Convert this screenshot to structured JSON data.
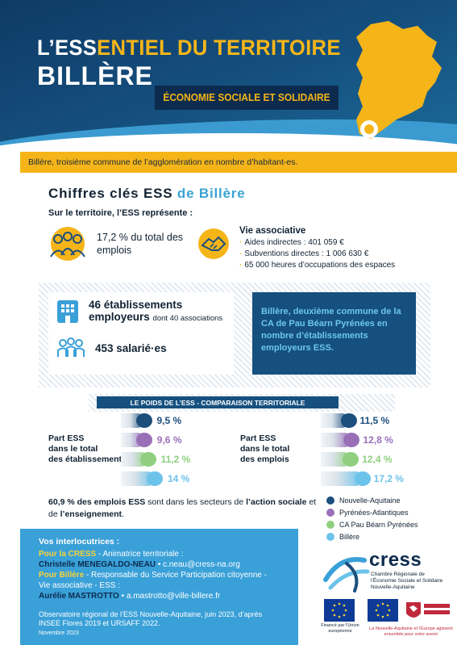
{
  "header": {
    "title_ess": "L’ESS",
    "title_rest": "ENTIEL DU TERRITOIRE",
    "town": "BILLÈRE",
    "subtitle": "ÉCONOMIE SOCIALE ET SOLIDAIRE"
  },
  "banner": "Billère, troisième commune de l’agglomération en nombre d’habitant-es.",
  "key": {
    "title": "Chiffres clés ESS",
    "title_de": "de Billère",
    "intro": "Sur le territoire, l’ESS représente :",
    "emplois_text": "17,2 % du total des emplois",
    "vie_title": "Vie associative",
    "vie_items": [
      "Aides indirectes : 401 059 €",
      "Subventions directes : 1 006 630 €",
      "65 000 heures d’occupations des espaces"
    ],
    "etab_main": "46 établissements",
    "etab_emp": "employeurs",
    "etab_small": "dont 40 associations",
    "salaries": "453 salarié·es",
    "blue_card": "Billère, deuxième commune de la CA de Pau Béarn Pyrénées en nombre d’établissements employeurs ESS."
  },
  "poids": {
    "title": "LE POIDS DE L’ESS - COMPARAISON TERRITORIALE"
  },
  "chart_data": [
    {
      "type": "bar",
      "title": "Part ESS dans le total des établissements",
      "categories": [
        "Nouvelle-Aquitaine",
        "Pyrénées-Atlantiques",
        "CA Pau Béarn Pyrénées",
        "Billère"
      ],
      "values": [
        9.5,
        9.6,
        11.2,
        14
      ],
      "labels": [
        "9,5 %",
        "9,6 %",
        "11,2 %",
        "14 %"
      ],
      "colors": [
        "#1c4f7c",
        "#9a6fb8",
        "#8fcf7f",
        "#6cc3ea"
      ]
    },
    {
      "type": "bar",
      "title": "Part ESS dans le total des emplois",
      "categories": [
        "Nouvelle-Aquitaine",
        "Pyrénées-Atlantiques",
        "CA Pau Béarn Pyrénées",
        "Billère"
      ],
      "values": [
        11.5,
        12.8,
        12.4,
        17.2
      ],
      "labels": [
        "11,5 %",
        "12,8 %",
        "12,4 %",
        "17,2 %"
      ],
      "colors": [
        "#1c4f7c",
        "#9a6fb8",
        "#8fcf7f",
        "#6cc3ea"
      ]
    }
  ],
  "bars_labels": {
    "left_l1": "Part ESS",
    "left_l2": "dans le total",
    "left_l3": "des établissements",
    "right_l1": "Part ESS",
    "right_l2": "dans le total",
    "right_l3": "des emplois"
  },
  "note": {
    "p1": "60,9 % des emplois ESS",
    "p2": " sont dans les secteurs de ",
    "p3": "l’action sociale",
    "p4": " et de ",
    "p5": "l’enseignement",
    "p6": "."
  },
  "legend": [
    "Nouvelle-Aquitaine",
    "Pyrénées-Atlantiques",
    "CA Pau Béarn Pyrénées",
    "Billère"
  ],
  "contacts": {
    "title": "Vos interlocutrices :",
    "cress_label": "Pour la CRESS",
    "cress_role": " - Animatrice territoriale :",
    "cress_name": "Christelle MENEGALDO-NEAU",
    "cress_mail": " • c.neau@cress-na.org",
    "billere_label": "Pour Billère",
    "billere_role": " - Responsable du Service Participation citoyenne -",
    "billere_role2": "Vie associative - ESS :",
    "billere_name": "Aurélie MASTROTTO",
    "billere_mail": " • a.mastrotto@ville-billere.fr"
  },
  "observatoire": "Observatoire régional de l’ESS Nouvelle-Aquitaine, juin 2023, d’après INSEE Flores 2019 et URSAFF 2022.",
  "date": "Novembre 2023",
  "logos": {
    "cress": "cress",
    "cress_sub": "Chambre Régionale de l’Économie Sociale et Solidaire Nouvelle-Aquitaine",
    "eu_caption": "Financé par l’Union européenne",
    "na_text": "La Nouvelle-Aquitaine et l’Europe agissent ensemble pour votre avenir"
  }
}
